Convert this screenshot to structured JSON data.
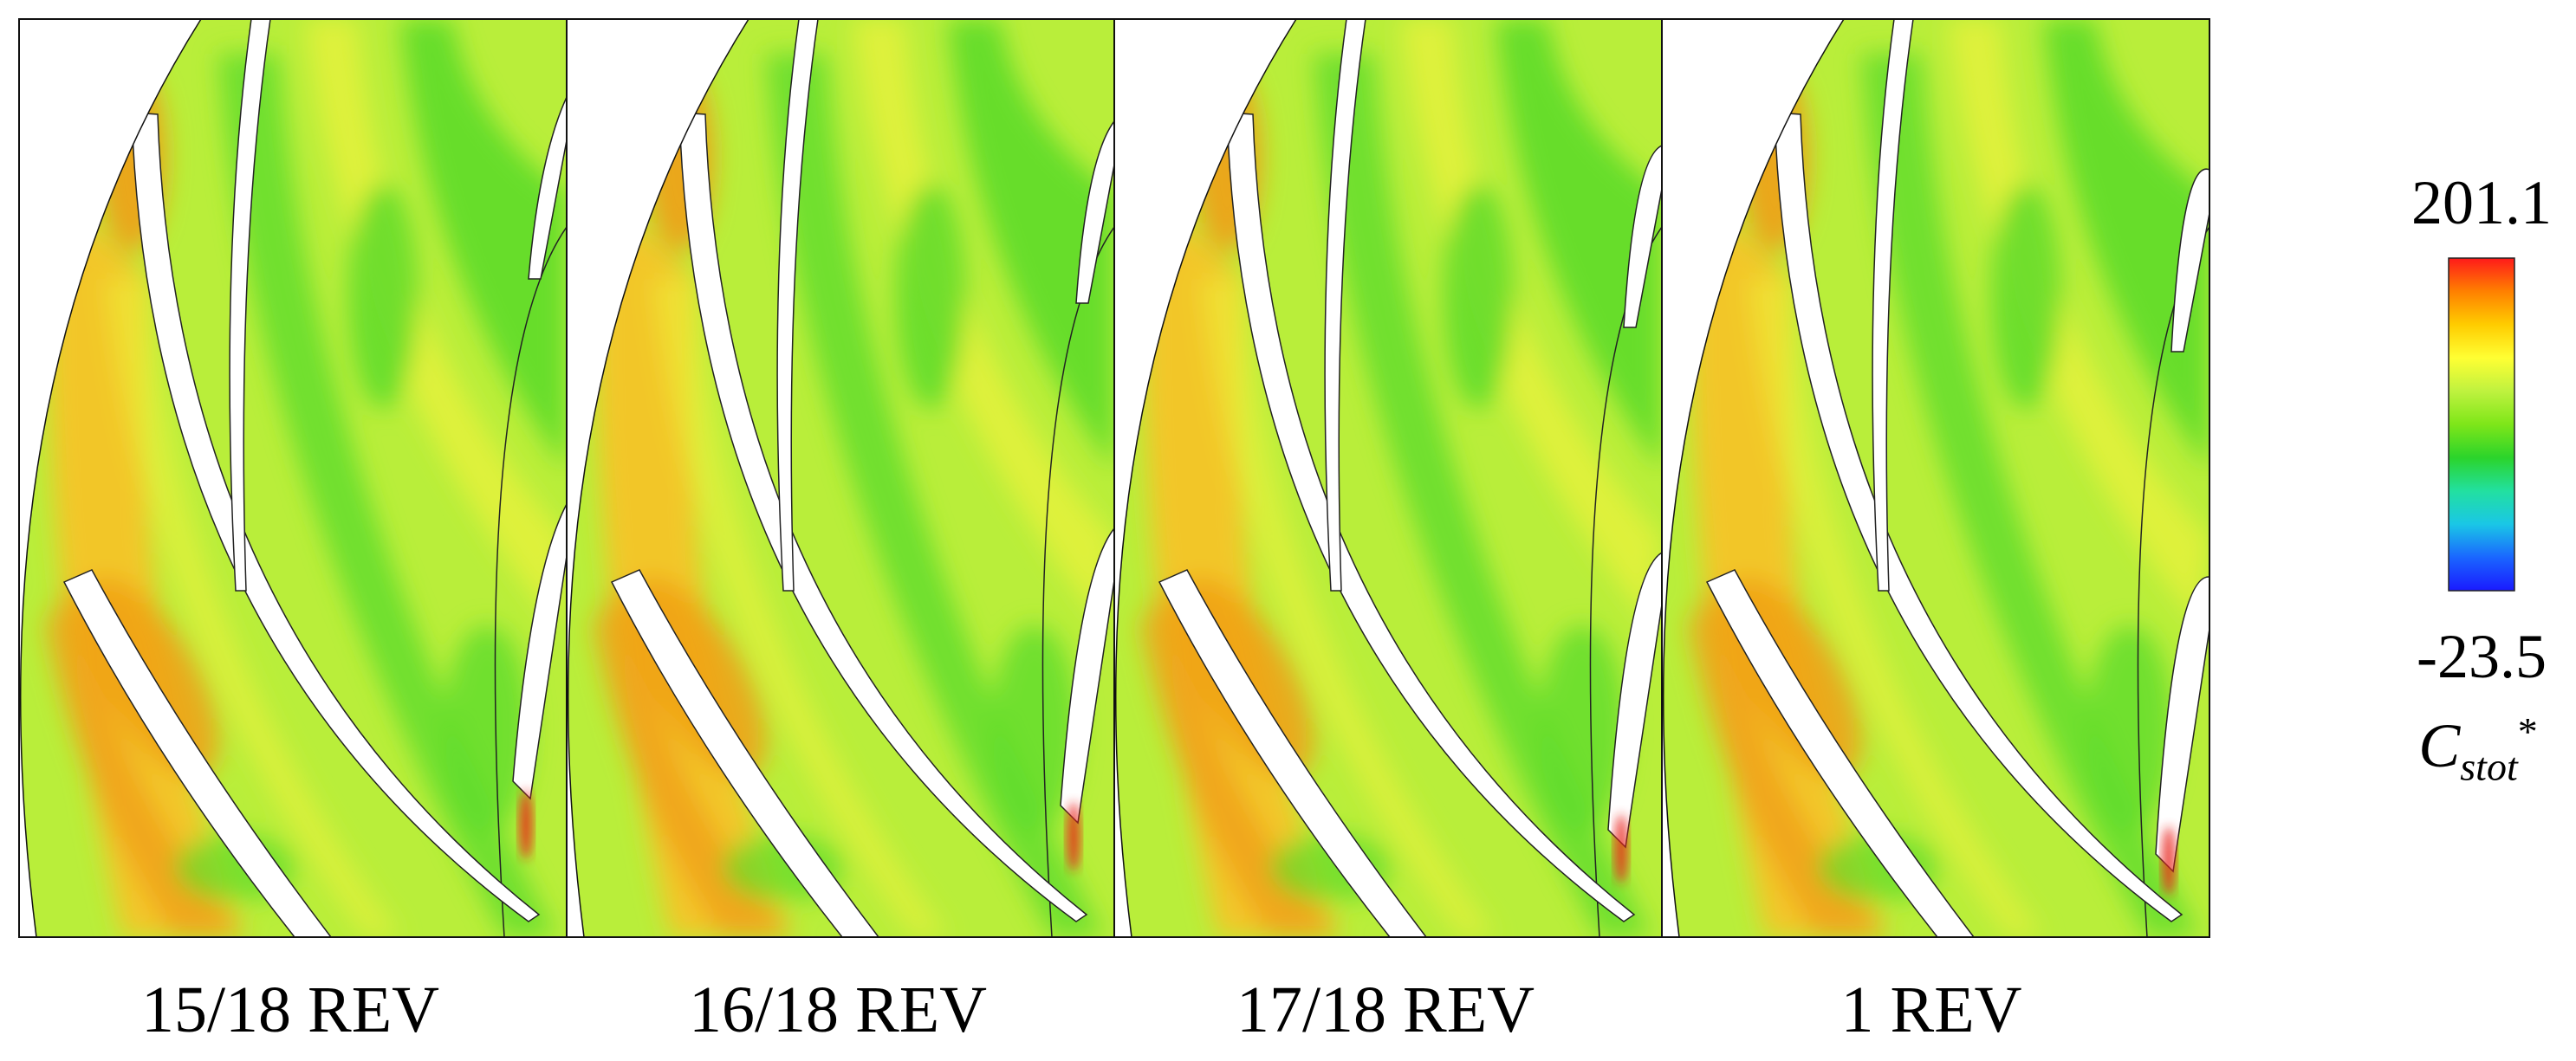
{
  "panels": [
    {
      "label": "15/18 REV",
      "rotor_shift": 0
    },
    {
      "label": "16/18 REV",
      "rotor_shift": 1
    },
    {
      "label": "17/18 REV",
      "rotor_shift": 2
    },
    {
      "label": "1 REV",
      "rotor_shift": 3
    }
  ],
  "colorbar": {
    "max": "201.1",
    "min": "-23.5",
    "variable": "C",
    "subscript": "stot",
    "superscript": "*",
    "colors": [
      "#ff1a1a",
      "#ff8000",
      "#ffcc00",
      "#ffff33",
      "#bff23f",
      "#7ee619",
      "#2bd42b",
      "#22e0a0",
      "#1ac7e6",
      "#1a66ff",
      "#1a1aff"
    ]
  },
  "field_colors": {
    "red": "#e8201a",
    "orange": "#f0a018",
    "yellow_orange": "#f6c428",
    "yellow": "#eef23a",
    "yellow_green": "#b9ee3a",
    "green": "#5edc2a",
    "cyan": "#36d6b0"
  }
}
